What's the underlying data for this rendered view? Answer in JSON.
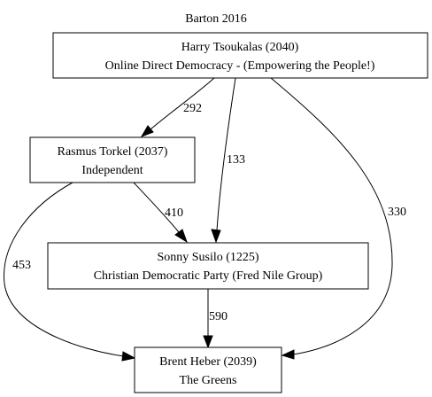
{
  "title": "Barton 2016",
  "nodes": {
    "tsoukalas": {
      "line1": "Harry Tsoukalas (2040)",
      "line2": "Online Direct Democracy - (Empowering the People!)"
    },
    "torkel": {
      "line1": "Rasmus Torkel (2037)",
      "line2": "Independent"
    },
    "susilo": {
      "line1": "Sonny Susilo (1225)",
      "line2": "Christian Democratic Party (Fred Nile Group)"
    },
    "heber": {
      "line1": "Brent Heber (2039)",
      "line2": "The Greens"
    }
  },
  "edges": {
    "tsoukalas_torkel": {
      "from": "Harry Tsoukalas (2040)",
      "to": "Rasmus Torkel (2037)",
      "label": "292"
    },
    "tsoukalas_susilo": {
      "from": "Harry Tsoukalas (2040)",
      "to": "Sonny Susilo (1225)",
      "label": "133"
    },
    "tsoukalas_heber": {
      "from": "Harry Tsoukalas (2040)",
      "to": "Brent Heber (2039)",
      "label": "330"
    },
    "torkel_susilo": {
      "from": "Rasmus Torkel (2037)",
      "to": "Sonny Susilo (1225)",
      "label": "410"
    },
    "torkel_heber": {
      "from": "Rasmus Torkel (2037)",
      "to": "Brent Heber (2039)",
      "label": "453"
    },
    "susilo_heber": {
      "from": "Sonny Susilo (1225)",
      "to": "Brent Heber (2039)",
      "label": "590"
    }
  }
}
